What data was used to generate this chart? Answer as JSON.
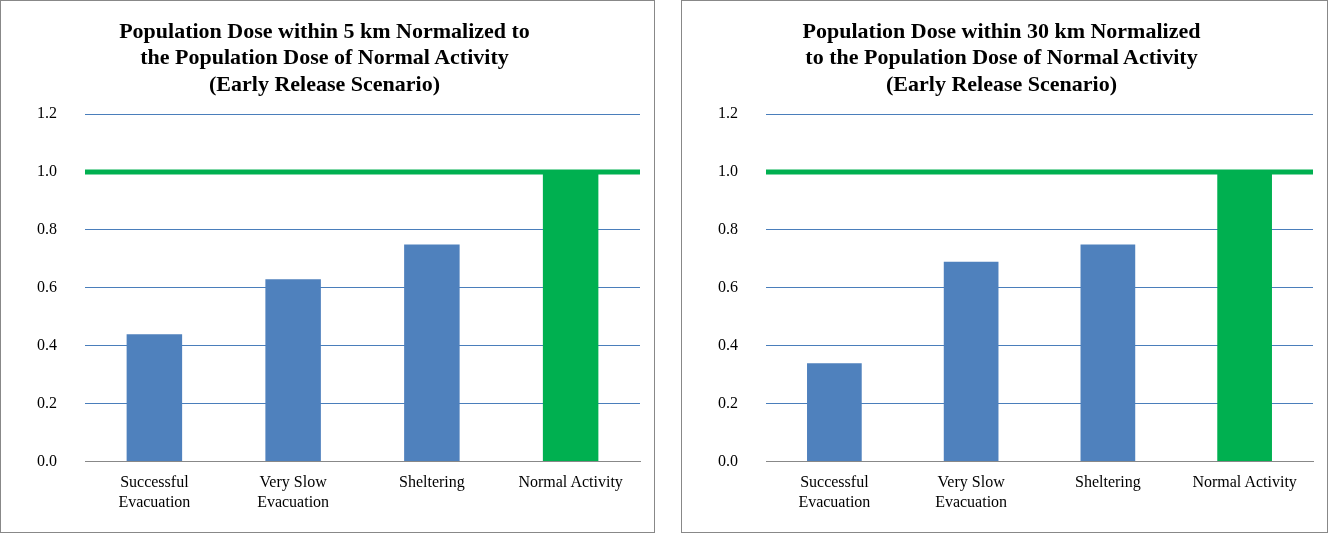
{
  "chart_data": [
    {
      "type": "bar",
      "title": "Population Dose within 5 km Normalized to the Population Dose of Normal Activity",
      "subtitle": "(Early Release Scenario)",
      "categories": [
        "Successful Evacuation",
        "Very Slow Evacuation",
        "Sheltering",
        "Normal Activity"
      ],
      "values": [
        0.44,
        0.63,
        0.75,
        1.0
      ],
      "colors": [
        "#4f81bd",
        "#4f81bd",
        "#4f81bd",
        "#00b050"
      ],
      "ylim": [
        0,
        1.2
      ],
      "yticks": [
        {
          "value": 0,
          "label": "0.0"
        },
        {
          "value": 0.2,
          "label": "0.2"
        },
        {
          "value": 0.4,
          "label": "0.4"
        },
        {
          "value": 0.6,
          "label": "0.6"
        },
        {
          "value": 0.8,
          "label": "0.8"
        },
        {
          "value": 1.0,
          "label": "1.0"
        },
        {
          "value": 1.2,
          "label": "1.2"
        }
      ],
      "grid": "y",
      "ref_lines": [
        {
          "axis": "y",
          "value": 1.0,
          "color": "#00b050"
        }
      ]
    },
    {
      "type": "bar",
      "title": "Population Dose within 30 km Normalized to the Population Dose of Normal Activity",
      "subtitle": "(Early Release Scenario)",
      "categories": [
        "Successful Evacuation",
        "Very Slow Evacuation",
        "Sheltering",
        "Normal Activity"
      ],
      "values": [
        0.34,
        0.69,
        0.75,
        1.0
      ],
      "colors": [
        "#4f81bd",
        "#4f81bd",
        "#4f81bd",
        "#00b050"
      ],
      "ylim": [
        0,
        1.2
      ],
      "yticks": [
        {
          "value": 0,
          "label": "0.0"
        },
        {
          "value": 0.2,
          "label": "0.2"
        },
        {
          "value": 0.4,
          "label": "0.4"
        },
        {
          "value": 0.6,
          "label": "0.6"
        },
        {
          "value": 0.8,
          "label": "0.8"
        },
        {
          "value": 1.0,
          "label": "1.0"
        },
        {
          "value": 1.2,
          "label": "1.2"
        }
      ],
      "grid": "y",
      "ref_lines": [
        {
          "axis": "y",
          "value": 1.0,
          "color": "#00b050"
        }
      ]
    }
  ]
}
